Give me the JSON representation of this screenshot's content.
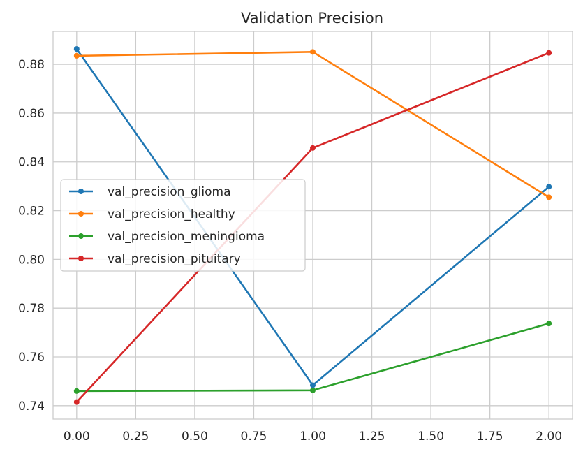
{
  "chart_data": {
    "type": "line",
    "title": "Validation Precision",
    "xlabel": "",
    "ylabel": "",
    "x": [
      0,
      1,
      2
    ],
    "xlim": [
      -0.1,
      2.1
    ],
    "ylim": [
      0.7345,
      0.8935
    ],
    "x_ticks": [
      0.0,
      0.25,
      0.5,
      0.75,
      1.0,
      1.25,
      1.5,
      1.75,
      2.0
    ],
    "x_tick_labels": [
      "0.00",
      "0.25",
      "0.50",
      "0.75",
      "1.00",
      "1.25",
      "1.50",
      "1.75",
      "2.00"
    ],
    "y_ticks": [
      0.74,
      0.76,
      0.78,
      0.8,
      0.82,
      0.84,
      0.86,
      0.88
    ],
    "y_tick_labels": [
      "0.74",
      "0.76",
      "0.78",
      "0.80",
      "0.82",
      "0.84",
      "0.86",
      "0.88"
    ],
    "grid": true,
    "legend_position": "center-left",
    "series": [
      {
        "name": "val_precision_glioma",
        "color": "#1f77b4",
        "values": [
          0.8863,
          0.7484,
          0.8298
        ]
      },
      {
        "name": "val_precision_healthy",
        "color": "#ff7f0e",
        "values": [
          0.8835,
          0.8851,
          0.8255
        ]
      },
      {
        "name": "val_precision_meningioma",
        "color": "#2ca02c",
        "values": [
          0.746,
          0.7463,
          0.7737
        ]
      },
      {
        "name": "val_precision_pituitary",
        "color": "#d62728",
        "values": [
          0.7415,
          0.8457,
          0.8847
        ]
      }
    ]
  }
}
